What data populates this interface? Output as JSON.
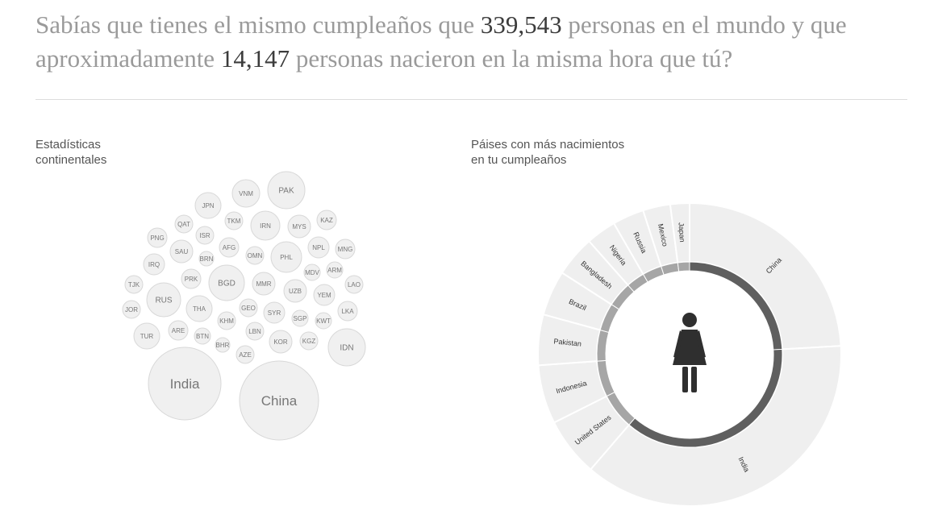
{
  "headline": {
    "part1": "Sabías que tienes el mismo cumpleaños que ",
    "same_birthday": "339,543",
    "part2": " personas en el mundo y que aproximadamente ",
    "same_hour": "14,147",
    "part3": " personas nacieron en la misma hora que tú?"
  },
  "continental": {
    "title_line1": "Estadísticas",
    "title_line2": "continentales"
  },
  "countries_panel": {
    "title_line1": "Páises con más nacimientos",
    "title_line2": "en tu cumpleaños"
  },
  "colors": {
    "bubble_fill": "#f0f0f0",
    "bubble_stroke": "#d8d8d8",
    "bubble_text": "#777777",
    "donut_fill": "#efefef",
    "ring_dark": "#5f5f5f",
    "ring_light": "#a6a6a6",
    "figure": "#2f2f2f"
  },
  "figure_icon": "woman-icon",
  "chart_data": [
    {
      "type": "bubble",
      "labels": [
        "India",
        "China",
        "IDN",
        "PAK",
        "VNM",
        "JPN",
        "QAT",
        "TKM",
        "IRN",
        "MYS",
        "KAZ",
        "PNG",
        "ISR",
        "AFG",
        "SAU",
        "BRN",
        "OMN",
        "PHL",
        "NPL",
        "MNG",
        "IRQ",
        "PRK",
        "BGD",
        "MMR",
        "MDV",
        "ARM",
        "TJK",
        "RUS",
        "UZB",
        "YEM",
        "LAO",
        "THA",
        "JOR",
        "GEO",
        "SYR",
        "SGP",
        "LKA",
        "KHM",
        "KWT",
        "ARE",
        "TUR",
        "BTN",
        "LBN",
        "KOR",
        "KGZ",
        "BHR",
        "AZE"
      ]
    },
    {
      "type": "donut",
      "categories": [
        "China",
        "India",
        "United States",
        "Indonesia",
        "Pakistan",
        "Brazil",
        "Bangladesh",
        "Nigeria",
        "Russia",
        "Mexico",
        "Japan"
      ],
      "values": [
        16.5,
        25.5,
        4.3,
        4.3,
        3.7,
        3.3,
        3.0,
        2.2,
        2.3,
        2.0,
        1.4
      ]
    }
  ]
}
